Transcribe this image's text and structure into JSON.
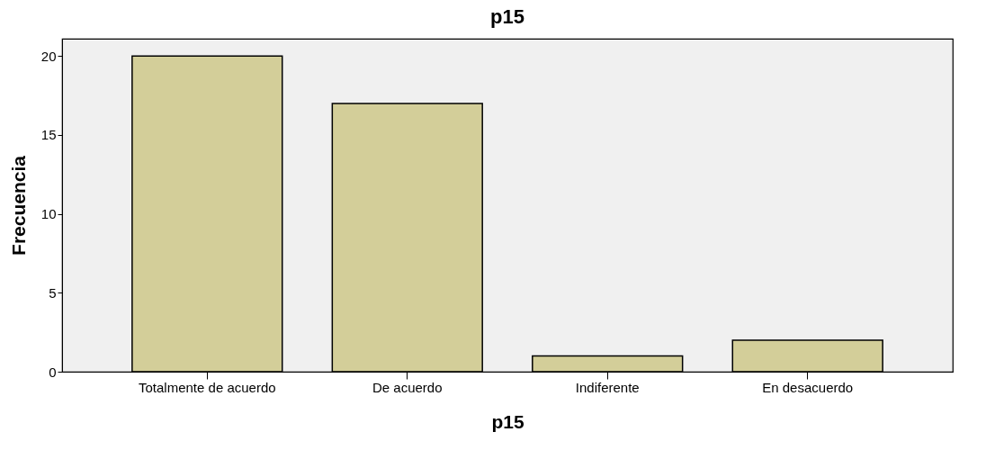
{
  "chart_data": {
    "type": "bar",
    "title": "p15",
    "xlabel": "p15",
    "ylabel": "Frecuencia",
    "categories": [
      "Totalmente de acuerdo",
      "De acuerdo",
      "Indiferente",
      "En desacuerdo"
    ],
    "values": [
      20,
      17,
      1,
      2
    ],
    "color": "#d3ce99",
    "ylim": [
      0,
      21.1
    ],
    "yticks": [
      0,
      5,
      10,
      15,
      20
    ],
    "grid": false
  }
}
